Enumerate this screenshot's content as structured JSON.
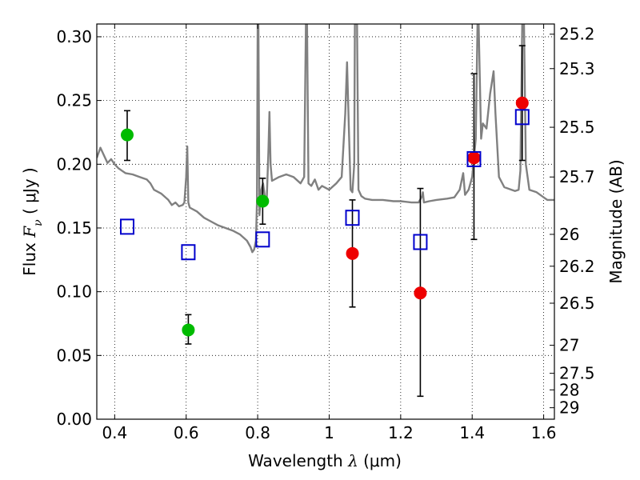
{
  "chart_data": {
    "type": "scatter",
    "xlabel": {
      "prefix": "Wavelength  ",
      "symbol": "λ",
      "units": " (μm)"
    },
    "ylabel": {
      "prefix": "Flux  ",
      "symbol": "F",
      "subscript": "ν",
      "units": "  ( μJy )"
    },
    "y2label": "Magnitude (AB)",
    "xlim": [
      0.35,
      1.63
    ],
    "ylim": [
      0.0,
      0.31
    ],
    "grid": true,
    "x_ticks": [
      {
        "value": 0.4,
        "label": "0.4"
      },
      {
        "value": 0.6,
        "label": "0.6"
      },
      {
        "value": 0.8,
        "label": "0.8"
      },
      {
        "value": 1.0,
        "label": "1"
      },
      {
        "value": 1.2,
        "label": "1.2"
      },
      {
        "value": 1.4,
        "label": "1.4"
      },
      {
        "value": 1.6,
        "label": "1.6"
      }
    ],
    "y_ticks": [
      {
        "value": 0.0,
        "label": "0.00"
      },
      {
        "value": 0.05,
        "label": "0.05"
      },
      {
        "value": 0.1,
        "label": "0.10"
      },
      {
        "value": 0.15,
        "label": "0.15"
      },
      {
        "value": 0.2,
        "label": "0.20"
      },
      {
        "value": 0.25,
        "label": "0.25"
      },
      {
        "value": 0.3,
        "label": "0.30"
      }
    ],
    "y2_ticks": [
      {
        "flux": 0.302,
        "label": "25.2"
      },
      {
        "flux": 0.275,
        "label": "25.3"
      },
      {
        "flux": 0.229,
        "label": "25.5"
      },
      {
        "flux": 0.19,
        "label": "25.7"
      },
      {
        "flux": 0.145,
        "label": "26"
      },
      {
        "flux": 0.12,
        "label": "26.2"
      },
      {
        "flux": 0.091,
        "label": "26.5"
      },
      {
        "flux": 0.058,
        "label": "27"
      },
      {
        "flux": 0.036,
        "label": "27.5"
      },
      {
        "flux": 0.023,
        "label": "28"
      },
      {
        "flux": 0.009,
        "label": "29"
      }
    ],
    "series": [
      {
        "marker": "circle",
        "color": "#00bb00",
        "points": [
          {
            "x": 0.435,
            "y": 0.223,
            "err_low": 0.203,
            "err_high": 0.242
          },
          {
            "x": 0.606,
            "y": 0.07,
            "err_low": 0.059,
            "err_high": 0.082
          },
          {
            "x": 0.814,
            "y": 0.171,
            "err_low": 0.153,
            "err_high": 0.189
          }
        ]
      },
      {
        "marker": "circle",
        "color": "#ee0000",
        "points": [
          {
            "x": 1.065,
            "y": 0.13,
            "err_low": 0.088,
            "err_high": 0.172
          },
          {
            "x": 1.255,
            "y": 0.099,
            "err_low": 0.018,
            "err_high": 0.181
          },
          {
            "x": 1.405,
            "y": 0.205,
            "err_low": 0.141,
            "err_high": 0.271
          },
          {
            "x": 1.54,
            "y": 0.248,
            "err_low": 0.203,
            "err_high": 0.293
          }
        ]
      },
      {
        "marker": "square",
        "color": "#0000cc",
        "points": [
          {
            "x": 0.435,
            "y": 0.151
          },
          {
            "x": 0.606,
            "y": 0.131
          },
          {
            "x": 0.814,
            "y": 0.141
          },
          {
            "x": 1.065,
            "y": 0.158
          },
          {
            "x": 1.255,
            "y": 0.139
          },
          {
            "x": 1.405,
            "y": 0.204
          },
          {
            "x": 1.54,
            "y": 0.237
          }
        ]
      }
    ],
    "spectrum": {
      "color": "#808080",
      "points": [
        [
          0.35,
          0.205
        ],
        [
          0.36,
          0.213
        ],
        [
          0.37,
          0.207
        ],
        [
          0.38,
          0.201
        ],
        [
          0.39,
          0.204
        ],
        [
          0.4,
          0.2
        ],
        [
          0.41,
          0.197
        ],
        [
          0.42,
          0.195
        ],
        [
          0.43,
          0.193
        ],
        [
          0.45,
          0.192
        ],
        [
          0.47,
          0.19
        ],
        [
          0.49,
          0.188
        ],
        [
          0.5,
          0.185
        ],
        [
          0.51,
          0.18
        ],
        [
          0.53,
          0.177
        ],
        [
          0.55,
          0.172
        ],
        [
          0.56,
          0.168
        ],
        [
          0.57,
          0.17
        ],
        [
          0.58,
          0.167
        ],
        [
          0.59,
          0.168
        ],
        [
          0.595,
          0.17
        ],
        [
          0.6,
          0.19
        ],
        [
          0.603,
          0.214
        ],
        [
          0.606,
          0.17
        ],
        [
          0.61,
          0.166
        ],
        [
          0.63,
          0.163
        ],
        [
          0.65,
          0.158
        ],
        [
          0.67,
          0.155
        ],
        [
          0.69,
          0.152
        ],
        [
          0.71,
          0.15
        ],
        [
          0.73,
          0.148
        ],
        [
          0.75,
          0.145
        ],
        [
          0.77,
          0.14
        ],
        [
          0.78,
          0.135
        ],
        [
          0.785,
          0.131
        ],
        [
          0.79,
          0.133
        ],
        [
          0.795,
          0.14
        ],
        [
          0.798,
          0.17
        ],
        [
          0.8,
          0.31
        ],
        [
          0.802,
          0.31
        ],
        [
          0.805,
          0.16
        ],
        [
          0.81,
          0.18
        ],
        [
          0.815,
          0.185
        ],
        [
          0.82,
          0.175
        ],
        [
          0.825,
          0.17
        ],
        [
          0.83,
          0.21
        ],
        [
          0.833,
          0.241
        ],
        [
          0.836,
          0.2
        ],
        [
          0.84,
          0.187
        ],
        [
          0.86,
          0.19
        ],
        [
          0.88,
          0.192
        ],
        [
          0.9,
          0.19
        ],
        [
          0.92,
          0.185
        ],
        [
          0.93,
          0.19
        ],
        [
          0.935,
          0.31
        ],
        [
          0.938,
          0.31
        ],
        [
          0.942,
          0.185
        ],
        [
          0.95,
          0.183
        ],
        [
          0.96,
          0.188
        ],
        [
          0.97,
          0.18
        ],
        [
          0.98,
          0.183
        ],
        [
          1.0,
          0.18
        ],
        [
          1.02,
          0.185
        ],
        [
          1.035,
          0.19
        ],
        [
          1.045,
          0.24
        ],
        [
          1.05,
          0.28
        ],
        [
          1.055,
          0.23
        ],
        [
          1.06,
          0.18
        ],
        [
          1.065,
          0.178
        ],
        [
          1.07,
          0.2
        ],
        [
          1.072,
          0.31
        ],
        [
          1.078,
          0.31
        ],
        [
          1.082,
          0.18
        ],
        [
          1.09,
          0.175
        ],
        [
          1.1,
          0.173
        ],
        [
          1.12,
          0.172
        ],
        [
          1.15,
          0.172
        ],
        [
          1.18,
          0.171
        ],
        [
          1.2,
          0.171
        ],
        [
          1.23,
          0.17
        ],
        [
          1.25,
          0.17
        ],
        [
          1.26,
          0.175
        ],
        [
          1.262,
          0.178
        ],
        [
          1.265,
          0.17
        ],
        [
          1.28,
          0.171
        ],
        [
          1.3,
          0.172
        ],
        [
          1.33,
          0.173
        ],
        [
          1.35,
          0.174
        ],
        [
          1.365,
          0.18
        ],
        [
          1.375,
          0.193
        ],
        [
          1.38,
          0.176
        ],
        [
          1.39,
          0.18
        ],
        [
          1.4,
          0.19
        ],
        [
          1.405,
          0.205
        ],
        [
          1.41,
          0.22
        ],
        [
          1.415,
          0.31
        ],
        [
          1.418,
          0.31
        ],
        [
          1.425,
          0.22
        ],
        [
          1.43,
          0.232
        ],
        [
          1.44,
          0.228
        ],
        [
          1.45,
          0.255
        ],
        [
          1.46,
          0.273
        ],
        [
          1.465,
          0.24
        ],
        [
          1.475,
          0.19
        ],
        [
          1.49,
          0.182
        ],
        [
          1.51,
          0.18
        ],
        [
          1.52,
          0.179
        ],
        [
          1.53,
          0.18
        ],
        [
          1.535,
          0.195
        ],
        [
          1.54,
          0.31
        ],
        [
          1.545,
          0.31
        ],
        [
          1.55,
          0.2
        ],
        [
          1.56,
          0.18
        ],
        [
          1.58,
          0.178
        ],
        [
          1.6,
          0.174
        ],
        [
          1.61,
          0.172
        ],
        [
          1.63,
          0.172
        ]
      ]
    }
  }
}
